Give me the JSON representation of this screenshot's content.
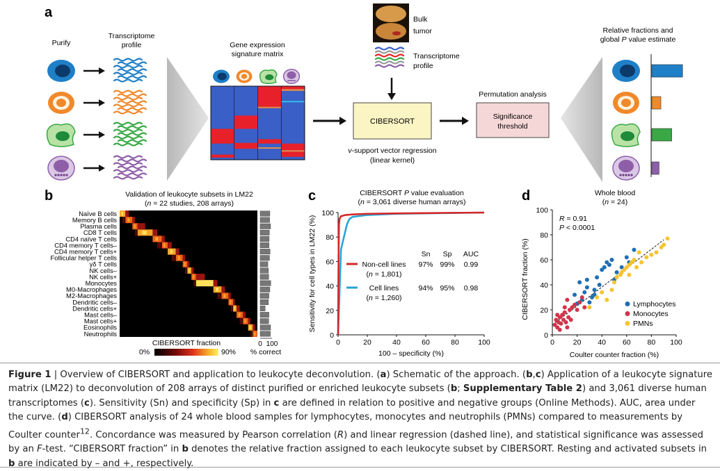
{
  "panel_a": {
    "letter": "a",
    "purify": "Purify",
    "transcriptome_profile": [
      "Transcriptome",
      "profile"
    ],
    "signature_matrix": [
      "Gene expression",
      "signature matrix"
    ],
    "bulk_tumor": [
      "Bulk",
      "tumor"
    ],
    "tumor_transcriptome": [
      "Transcriptome",
      "profile"
    ],
    "cibersort_box": "CIBERSORT",
    "svr": [
      "v-support vector regression",
      "(linear kernel)"
    ],
    "permutation": "Permutation analysis",
    "significance_box": [
      "Significance",
      "threshold"
    ],
    "relative_fractions": [
      "Relative fractions and",
      "global P value estimate"
    ],
    "cell_colors": [
      "#1f7fc7",
      "#f0892b",
      "#39a845",
      "#8e5fa8"
    ],
    "fraction_bars": [
      0.85,
      0.25,
      0.55,
      0.2
    ]
  },
  "panel_b": {
    "letter": "b",
    "title": "Validation of leukocyte subsets in LM22",
    "subtitle": "(n = 22 studies, 208 arrays)",
    "rows": [
      "Naïve B cells",
      "Memory B cells",
      "Plasma cells",
      "CD8 T cells",
      "CD4 naïve T cells",
      "CD4 memory T cells–",
      "CD4 memory T cells+",
      "Follicular helper T cells",
      "γδ T cells",
      "NK cells–",
      "NK cells+",
      "Monocytes",
      "M0-Macrophages",
      "M2-Macrophages",
      "Dendritic cells–",
      "Dendritic cells+",
      "Mast cells–",
      "Mast cells+",
      "Eosinophils",
      "Neutrophils"
    ],
    "colorbar_label": "CIBERSORT fraction",
    "colorbar_min": "0%",
    "colorbar_max": "90%",
    "pct_correct_ticks": [
      "0",
      "100"
    ],
    "pct_correct_label": "% correct",
    "pct_correct_values": [
      82,
      80,
      88,
      78,
      76,
      75,
      84,
      79,
      65,
      70,
      72,
      90,
      82,
      74,
      70,
      42,
      74,
      72,
      88,
      86
    ]
  },
  "panel_c": {
    "letter": "c",
    "title_prefix": "CIBERSORT ",
    "title_p": "P",
    "title_suffix": " value evaluation",
    "subtitle": "(n = 3,061 diverse human arrays)",
    "headers": [
      "Sn",
      "Sp",
      "AUC"
    ],
    "series": [
      {
        "name": "Non-cell lines",
        "count": "(n = 1,801)",
        "sn": "97%",
        "sp": "99%",
        "auc": "0.99",
        "color": "#d62728"
      },
      {
        "name": "Cell lines",
        "count": "(n = 1,260)",
        "sn": "94%",
        "sp": "95%",
        "auc": "0.98",
        "color": "#29a3d6"
      }
    ]
  },
  "panel_d": {
    "letter": "d",
    "whole_blood": "Whole blood",
    "wb_n": "(n = 24)",
    "r": "R = 0.91",
    "p": "P < 0.0001",
    "legend": [
      {
        "name": "Lymphocytes",
        "color": "#1f6fb5"
      },
      {
        "name": "Monocytes",
        "color": "#d1354b"
      },
      {
        "name": "PMNs",
        "color": "#f6c431"
      }
    ]
  },
  "chart_data": [
    {
      "type": "line",
      "xlabel": "100 – specificity (%)",
      "ylabel": "Sensitivity for cell types in LM22 (%)",
      "xlim": [
        0,
        100
      ],
      "ylim": [
        0,
        100
      ],
      "xticks": [
        "0",
        "20",
        "40",
        "60",
        "80",
        "100"
      ],
      "yticks": [
        "0",
        "20",
        "40",
        "60",
        "80",
        "100"
      ],
      "series": [
        {
          "name": "Non-cell lines",
          "x": [
            0,
            0.3,
            0.6,
            1,
            2,
            5,
            10,
            20,
            40,
            70,
            100
          ],
          "y": [
            0,
            60,
            90,
            95,
            97,
            98,
            98.5,
            99,
            99.3,
            99.7,
            100
          ]
        },
        {
          "name": "Cell lines",
          "x": [
            0,
            2,
            3,
            4,
            5,
            6,
            7,
            8,
            10,
            20,
            40,
            70,
            100
          ],
          "y": [
            0,
            70,
            75,
            80,
            85,
            90,
            93,
            95,
            96.5,
            98,
            99,
            99.5,
            100
          ]
        }
      ]
    },
    {
      "type": "scatter",
      "xlabel": "Coulter counter fraction (%)",
      "ylabel": "CIBERSORT fraction (%)",
      "xlim": [
        0,
        100
      ],
      "ylim": [
        0,
        100
      ],
      "xticks": [
        "0",
        "20",
        "40",
        "60",
        "80",
        "100"
      ],
      "yticks": [
        "0",
        "20",
        "40",
        "60",
        "80",
        "100"
      ],
      "series": [
        {
          "name": "Lymphocytes",
          "points": [
            [
              20,
              25
            ],
            [
              24,
              28
            ],
            [
              26,
              34
            ],
            [
              28,
              38
            ],
            [
              30,
              26
            ],
            [
              32,
              30
            ],
            [
              34,
              32
            ],
            [
              36,
              46
            ],
            [
              38,
              40
            ],
            [
              40,
              52
            ],
            [
              42,
              54
            ],
            [
              44,
              58
            ],
            [
              46,
              56
            ],
            [
              48,
              60
            ],
            [
              50,
              44
            ],
            [
              52,
              50
            ],
            [
              56,
              54
            ],
            [
              60,
              62
            ],
            [
              62,
              58
            ],
            [
              66,
              68
            ],
            [
              22,
              42
            ],
            [
              28,
              44
            ],
            [
              34,
              36
            ],
            [
              18,
              32
            ]
          ]
        },
        {
          "name": "Monocytes",
          "points": [
            [
              2,
              8
            ],
            [
              3,
              12
            ],
            [
              4,
              6
            ],
            [
              5,
              10
            ],
            [
              6,
              14
            ],
            [
              7,
              9
            ],
            [
              8,
              16
            ],
            [
              9,
              12
            ],
            [
              10,
              18
            ],
            [
              11,
              10
            ],
            [
              12,
              6
            ],
            [
              13,
              14
            ],
            [
              14,
              20
            ],
            [
              15,
              12
            ],
            [
              16,
              22
            ],
            [
              18,
              24
            ],
            [
              20,
              20
            ],
            [
              22,
              26
            ],
            [
              24,
              30
            ],
            [
              26,
              22
            ],
            [
              4,
              16
            ],
            [
              6,
              4
            ],
            [
              10,
              22
            ],
            [
              12,
              28
            ]
          ]
        },
        {
          "name": "PMNs",
          "points": [
            [
              30,
              22
            ],
            [
              36,
              30
            ],
            [
              40,
              34
            ],
            [
              44,
              28
            ],
            [
              48,
              36
            ],
            [
              50,
              42
            ],
            [
              52,
              46
            ],
            [
              55,
              48
            ],
            [
              56,
              50
            ],
            [
              58,
              52
            ],
            [
              60,
              54
            ],
            [
              62,
              56
            ],
            [
              64,
              58
            ],
            [
              66,
              60
            ],
            [
              70,
              66
            ],
            [
              72,
              58
            ],
            [
              76,
              62
            ],
            [
              80,
              64
            ],
            [
              84,
              66
            ],
            [
              88,
              70
            ],
            [
              90,
              72
            ],
            [
              93,
              77
            ],
            [
              62,
              48
            ],
            [
              68,
              54
            ]
          ]
        }
      ]
    }
  ],
  "caption": {
    "figure_label": "Figure 1",
    "text_html": " | Overview of CIBERSORT and application to leukocyte deconvolution. (<b>a</b>) Schematic of the approach. (<b>b</b>,<b>c</b>) Application of a leukocyte signature matrix (LM22) to deconvolution of 208 arrays of distinct purified or enriched leukocyte subsets (<b>b</b>; <b>Supplementary Table 2</b>) and 3,061 diverse human transcriptomes (<b>c</b>). Sensitivity (Sn) and specificity (Sp) in <b>c</b> are defined in relation to positive and negative groups (Online Methods). AUC, area under the curve. (<b>d</b>) CIBERSORT analysis of 24 whole blood samples for lymphocytes, monocytes and neutrophils (PMNs) compared to measurements by Coulter counter<sup>12</sup>. Concordance was measured by Pearson correlation (<i>R</i>) and linear regression (dashed line), and statistical significance was assessed by an <i>F</i>-test. “CIBERSORT fraction” in <b>b</b> denotes the relative fraction assigned to each leukocyte subset by CIBERSORT. Resting and activated subsets in <b>b</b> are indicated by – and +, respectively."
  }
}
